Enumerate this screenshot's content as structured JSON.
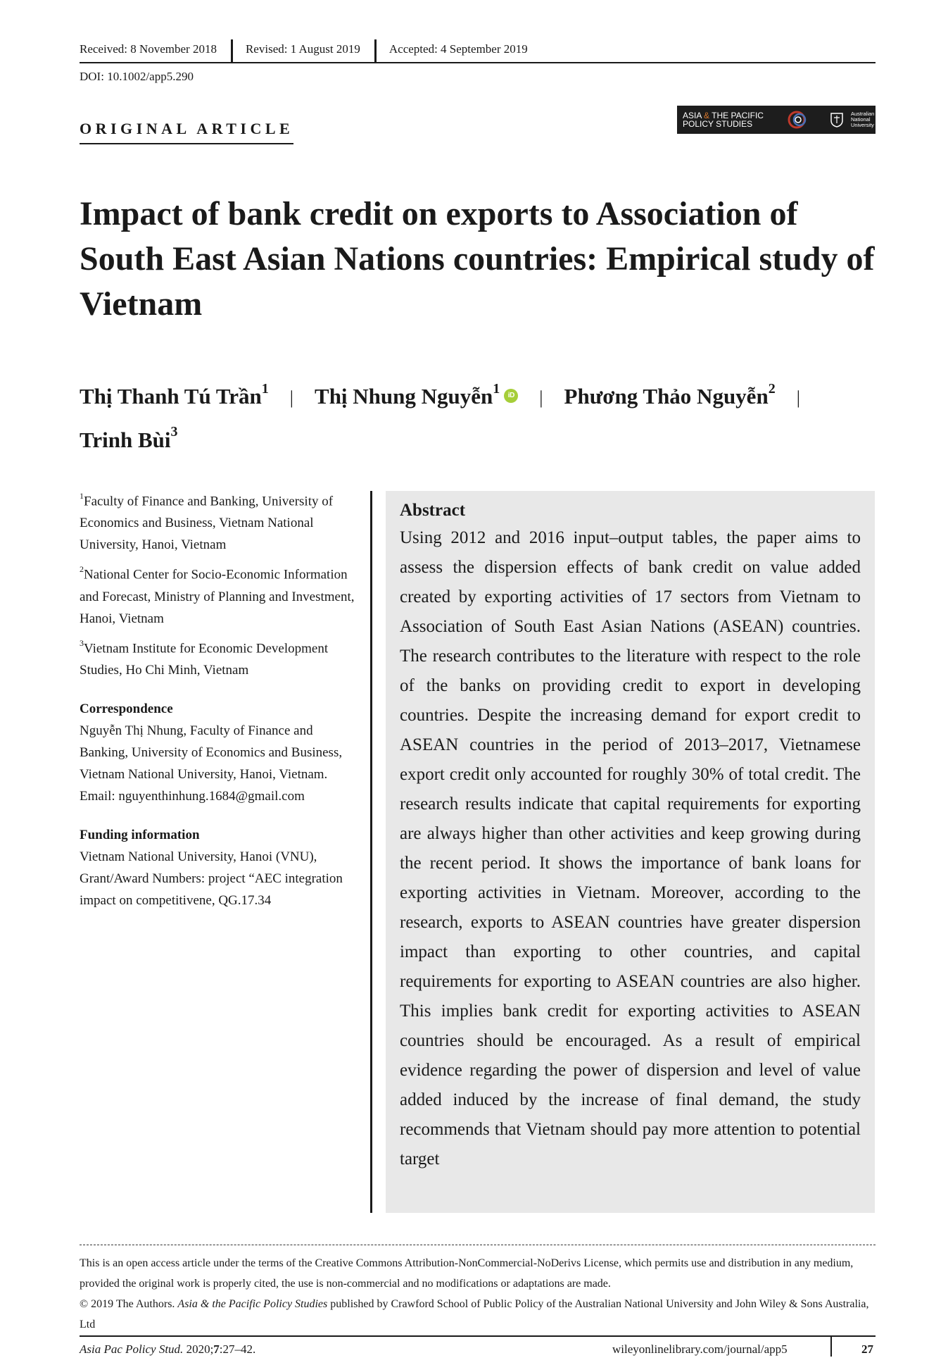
{
  "header": {
    "received": "Received: 8 November 2018",
    "revised": "Revised: 1 August 2019",
    "accepted": "Accepted: 4 September 2019",
    "doi": "DOI: 10.1002/app5.290",
    "article_type": "ORIGINAL ARTICLE",
    "journal_logo": {
      "line1_a": "ASIA",
      "amp": "&",
      "line1_b": "THE PACIFIC",
      "line2": "POLICY STUDIES",
      "anu_1": "Australian",
      "anu_2": "National",
      "anu_3": "University"
    }
  },
  "title": "Impact of bank credit on exports to Association of South East Asian Nations countries: Empirical study of Vietnam",
  "authors": [
    {
      "name": "Thị Thanh Tú Trần",
      "aff": "1"
    },
    {
      "name": "Thị Nhung Nguyễn",
      "aff": "1",
      "orcid": "iD"
    },
    {
      "name": "Phương Thảo Nguyễn",
      "aff": "2"
    },
    {
      "name": "Trinh Bùi",
      "aff": "3"
    }
  ],
  "author_separator": "|",
  "affiliations": [
    {
      "num": "1",
      "text": "Faculty of Finance and Banking, University of Economics and Business, Vietnam National University, Hanoi, Vietnam"
    },
    {
      "num": "2",
      "text": "National Center for Socio-Economic Information and Forecast, Ministry of Planning and Investment, Hanoi, Vietnam"
    },
    {
      "num": "3",
      "text": "Vietnam Institute for Economic Development Studies, Ho Chi Minh, Vietnam"
    }
  ],
  "correspondence": {
    "heading": "Correspondence",
    "text": "Nguyễn Thị Nhung, Faculty of Finance and Banking, University of Economics and Business, Vietnam National University, Hanoi, Vietnam.",
    "email": "Email: nguyenthinhung.1684@gmail.com"
  },
  "funding": {
    "heading": "Funding information",
    "text": "Vietnam National University, Hanoi (VNU), Grant/Award Numbers: project “AEC integration impact on competitivene, QG.17.34"
  },
  "abstract": {
    "heading": "Abstract",
    "text": "Using 2012 and 2016 input–output tables, the paper aims to assess the dispersion effects of bank credit on value added created by exporting activities of 17 sectors from Vietnam to Association of South East Asian Nations (ASEAN) countries. The research contributes to the literature with respect to the role of the banks on providing credit to export in developing countries. Despite the increasing demand for export credit to ASEAN countries in the period of 2013–2017, Vietnamese export credit only accounted for roughly 30% of total credit. The research results indicate that capital requirements for exporting are always higher than other activities and keep growing during the recent period. It shows the importance of bank loans for exporting activities in Vietnam. Moreover, according to the research, exports to ASEAN countries have greater dispersion impact than exporting to other countries, and capital requirements for exporting to ASEAN countries are also higher. This implies bank credit for exporting activities to ASEAN countries should be encouraged. As a result of empirical evidence regarding the power of dispersion and level of value added induced by the increase of final demand, the study recommends that Vietnam should pay more attention to potential target"
  },
  "license": {
    "line1": "This is an open access article under the terms of the Creative Commons Attribution-NonCommercial-NoDerivs License, which permits use and distribution in any medium, provided the original work is properly cited, the use is non-commercial and no modifications or adaptations are made.",
    "copyright": "© 2019 The Authors.",
    "journal_name": "Asia & the Pacific Policy Studies",
    "published_by": "published by Crawford School of Public Policy of the Australian National University and John Wiley & Sons Australia, Ltd"
  },
  "footer": {
    "citation_journal": "Asia Pac Policy Stud.",
    "citation_year": "2020;",
    "citation_volume": "7",
    "citation_pages": ":27–42.",
    "url": "wileyonlinelibrary.com/journal/app5",
    "page_number": "27"
  }
}
